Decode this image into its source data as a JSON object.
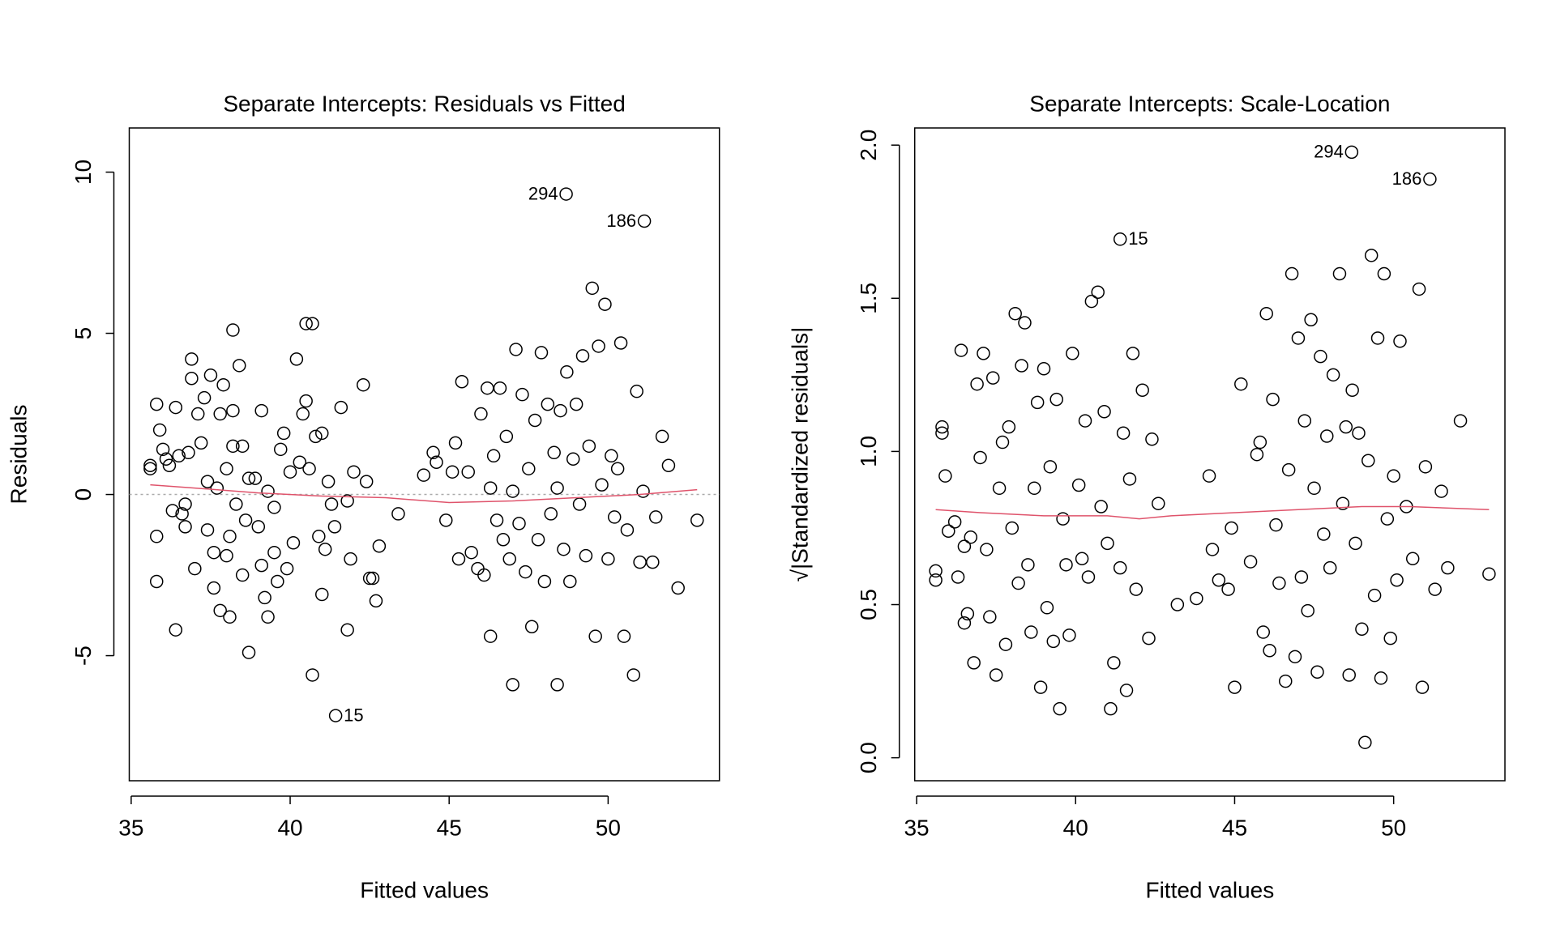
{
  "chart_data": [
    {
      "type": "scatter",
      "title": "Separate Intercepts: Residuals vs Fitted",
      "x_label": "Fitted values",
      "y_label": "Residuals",
      "xlim": [
        34.94,
        53.5
      ],
      "ylim": [
        -8.88,
        11.37
      ],
      "xticks": [
        35,
        40,
        45,
        50
      ],
      "yticks": [
        -5,
        0,
        5,
        10
      ],
      "color": "#000000",
      "smooth_color": "#df536b",
      "reference_line": 0,
      "x": [
        35.6,
        35.6,
        35.8,
        35.8,
        35.8,
        35.9,
        36.0,
        36.1,
        36.2,
        36.3,
        36.4,
        36.4,
        36.5,
        36.6,
        36.7,
        36.7,
        36.8,
        36.9,
        36.9,
        37.0,
        37.1,
        37.2,
        37.3,
        37.4,
        37.4,
        37.5,
        37.6,
        37.6,
        37.7,
        37.8,
        37.8,
        37.9,
        38.0,
        38.0,
        38.1,
        38.1,
        38.2,
        38.2,
        38.2,
        38.3,
        38.4,
        38.5,
        38.5,
        38.6,
        38.7,
        38.7,
        38.9,
        39.0,
        39.1,
        39.1,
        39.2,
        39.3,
        39.3,
        39.5,
        39.5,
        39.6,
        39.7,
        39.8,
        39.9,
        40.0,
        40.1,
        40.2,
        40.3,
        40.4,
        40.5,
        40.6,
        40.8,
        40.9,
        40.5,
        40.7,
        40.7,
        41.0,
        41.0,
        41.1,
        41.2,
        41.3,
        41.4,
        41.6,
        41.8,
        41.9,
        41.8,
        42.0,
        42.3,
        42.5,
        42.6,
        42.7,
        42.4,
        42.8,
        43.4,
        44.2,
        44.5,
        44.6,
        44.9,
        45.1,
        45.2,
        45.3,
        45.4,
        45.6,
        45.7,
        45.9,
        46.0,
        46.1,
        46.2,
        46.3,
        46.3,
        46.4,
        46.5,
        46.6,
        46.7,
        46.8,
        46.9,
        47.0,
        47.0,
        47.1,
        47.2,
        47.3,
        47.4,
        47.5,
        47.6,
        47.7,
        47.8,
        47.9,
        48.0,
        48.1,
        48.2,
        48.3,
        48.4,
        48.4,
        48.5,
        48.6,
        48.7,
        48.8,
        48.9,
        49.0,
        49.1,
        49.2,
        49.3,
        49.4,
        49.5,
        49.6,
        49.7,
        49.8,
        49.9,
        50.0,
        50.1,
        50.2,
        50.3,
        50.4,
        50.5,
        50.6,
        50.8,
        50.9,
        51.0,
        51.1,
        51.4,
        51.5,
        51.7,
        51.9,
        52.2,
        52.8
      ],
      "y": [
        0.9,
        0.8,
        2.8,
        -1.3,
        -2.7,
        2.0,
        1.4,
        1.1,
        0.9,
        -0.5,
        2.7,
        -4.2,
        1.2,
        -0.6,
        -0.3,
        -1.0,
        1.3,
        4.2,
        3.6,
        -2.3,
        2.5,
        1.6,
        3.0,
        0.4,
        -1.1,
        3.7,
        -1.8,
        -2.9,
        0.2,
        2.5,
        -3.6,
        3.4,
        0.8,
        -1.9,
        -1.3,
        -3.8,
        2.6,
        5.1,
        1.5,
        -0.3,
        4.0,
        1.5,
        -2.5,
        -0.8,
        -4.9,
        0.5,
        0.5,
        -1.0,
        2.6,
        -2.2,
        -3.2,
        0.1,
        -3.8,
        -0.4,
        -1.8,
        -2.7,
        1.4,
        1.9,
        -2.3,
        0.7,
        -1.5,
        4.2,
        1.0,
        2.5,
        2.9,
        0.8,
        1.8,
        -1.3,
        5.3,
        5.3,
        -5.6,
        1.9,
        -3.1,
        -1.7,
        0.4,
        -0.3,
        -1.0,
        2.7,
        -0.2,
        -2.0,
        -4.2,
        0.7,
        3.4,
        -2.6,
        -2.6,
        -3.3,
        0.4,
        -1.6,
        -0.6,
        0.6,
        1.3,
        1.0,
        -0.8,
        0.7,
        1.6,
        -2.0,
        3.5,
        0.7,
        -1.8,
        -2.3,
        2.5,
        -2.5,
        3.3,
        0.2,
        -4.4,
        1.2,
        -0.8,
        3.3,
        -1.4,
        1.8,
        -2.0,
        0.1,
        -5.9,
        4.5,
        -0.9,
        3.1,
        -2.4,
        0.8,
        -4.1,
        2.3,
        -1.4,
        4.4,
        -2.7,
        2.8,
        -0.6,
        1.3,
        -5.9,
        0.2,
        2.6,
        -1.7,
        3.8,
        -2.7,
        1.1,
        2.8,
        -0.3,
        4.3,
        -1.9,
        1.5,
        6.4,
        -4.4,
        4.6,
        0.3,
        5.9,
        -2.0,
        1.2,
        -0.7,
        0.8,
        4.7,
        -4.4,
        -1.1,
        -5.6,
        3.2,
        -2.1,
        0.1,
        -2.1,
        -0.7,
        1.8,
        0.9,
        -2.9,
        -0.8
      ],
      "smooth": {
        "x": [
          35.6,
          37,
          39,
          41,
          43,
          45,
          47,
          49,
          51,
          52.8
        ],
        "y": [
          0.3,
          0.2,
          0.05,
          -0.05,
          -0.1,
          -0.25,
          -0.2,
          -0.1,
          0.0,
          0.15
        ]
      },
      "annotations": [
        {
          "text": "294",
          "x": 48.68,
          "y": 9.32
        },
        {
          "text": "186",
          "x": 51.14,
          "y": 8.48
        },
        {
          "text": "15",
          "x": 41.43,
          "y": -6.86
        }
      ]
    },
    {
      "type": "scatter",
      "title": "Separate Intercepts: Scale-Location",
      "x_label": "Fitted values",
      "y_label": "√|Standardized residuals|",
      "xlim": [
        34.94,
        53.5
      ],
      "ylim": [
        -0.075,
        2.056
      ],
      "xticks": [
        35,
        40,
        45,
        50
      ],
      "yticks": [
        {
          "value": 0,
          "label": "0.0"
        },
        0.5,
        {
          "value": 1,
          "label": "1.0"
        },
        1.5,
        {
          "value": 2,
          "label": "2.0"
        }
      ],
      "color": "#000000",
      "smooth_color": "#df536b",
      "x": [
        35.6,
        35.6,
        35.8,
        35.8,
        35.9,
        36.0,
        36.2,
        36.3,
        36.4,
        36.5,
        36.5,
        36.6,
        36.7,
        36.8,
        36.9,
        37.0,
        37.1,
        37.2,
        37.3,
        37.4,
        37.5,
        37.6,
        37.7,
        37.8,
        37.9,
        38.0,
        38.1,
        38.2,
        38.3,
        38.4,
        38.5,
        38.6,
        38.7,
        38.8,
        38.9,
        39.0,
        39.1,
        39.2,
        39.3,
        39.4,
        39.5,
        39.6,
        39.7,
        39.8,
        39.9,
        40.1,
        40.2,
        40.3,
        40.4,
        40.5,
        40.7,
        40.8,
        40.9,
        41.0,
        41.1,
        41.2,
        41.4,
        41.5,
        41.6,
        41.7,
        41.8,
        41.9,
        42.1,
        42.3,
        42.4,
        42.6,
        43.2,
        43.8,
        44.2,
        44.3,
        44.5,
        44.8,
        44.9,
        45.0,
        45.2,
        45.5,
        45.7,
        45.8,
        45.9,
        46.0,
        46.1,
        46.2,
        46.3,
        46.4,
        46.6,
        46.7,
        46.8,
        46.9,
        47.0,
        47.1,
        47.2,
        47.3,
        47.4,
        47.5,
        47.6,
        47.7,
        47.8,
        47.9,
        48.0,
        48.1,
        48.3,
        48.4,
        48.5,
        48.6,
        48.7,
        48.8,
        48.9,
        49.0,
        49.1,
        49.2,
        49.3,
        49.4,
        49.5,
        49.6,
        49.7,
        49.8,
        49.9,
        50.0,
        50.1,
        50.2,
        50.4,
        50.6,
        50.8,
        50.9,
        51.0,
        51.3,
        51.5,
        51.7,
        52.1,
        53.0
      ],
      "y": [
        0.58,
        0.61,
        1.08,
        1.06,
        0.92,
        0.74,
        0.77,
        0.59,
        1.33,
        0.69,
        0.44,
        0.47,
        0.72,
        0.31,
        1.22,
        0.98,
        1.32,
        0.68,
        0.46,
        1.24,
        0.27,
        0.88,
        1.03,
        0.37,
        1.08,
        0.75,
        1.45,
        0.57,
        1.28,
        1.42,
        0.63,
        0.41,
        0.88,
        1.16,
        0.23,
        1.27,
        0.49,
        0.95,
        0.38,
        1.17,
        0.16,
        0.78,
        0.63,
        0.4,
        1.32,
        0.89,
        0.65,
        1.1,
        0.59,
        1.49,
        1.52,
        0.82,
        1.13,
        0.7,
        0.16,
        0.31,
        0.62,
        1.06,
        0.22,
        0.91,
        1.32,
        0.55,
        1.2,
        0.39,
        1.04,
        0.83,
        0.5,
        0.52,
        0.92,
        0.68,
        0.58,
        0.55,
        0.75,
        0.23,
        1.22,
        0.64,
        0.99,
        1.03,
        0.41,
        1.45,
        0.35,
        1.17,
        0.76,
        0.57,
        0.25,
        0.94,
        1.58,
        0.33,
        1.37,
        0.59,
        1.1,
        0.48,
        1.43,
        0.88,
        0.28,
        1.31,
        0.73,
        1.05,
        0.62,
        1.25,
        1.58,
        0.83,
        1.08,
        0.27,
        1.2,
        0.7,
        1.06,
        0.42,
        0.05,
        0.97,
        1.64,
        0.53,
        1.37,
        0.26,
        1.58,
        0.78,
        0.39,
        0.92,
        0.58,
        1.36,
        0.82,
        0.65,
        1.53,
        0.23,
        0.95,
        0.55,
        0.87,
        0.62,
        1.1,
        0.6
      ],
      "smooth": {
        "x": [
          35.6,
          37,
          39,
          41,
          42,
          43,
          45,
          47,
          49,
          50.5,
          53
        ],
        "y": [
          0.81,
          0.8,
          0.79,
          0.79,
          0.78,
          0.79,
          0.8,
          0.81,
          0.82,
          0.82,
          0.81
        ]
      },
      "annotations": [
        {
          "text": "294",
          "x": 48.68,
          "y": 1.977
        },
        {
          "text": "186",
          "x": 51.14,
          "y": 1.889
        },
        {
          "text": "15",
          "x": 41.4,
          "y": 1.693
        }
      ]
    }
  ]
}
